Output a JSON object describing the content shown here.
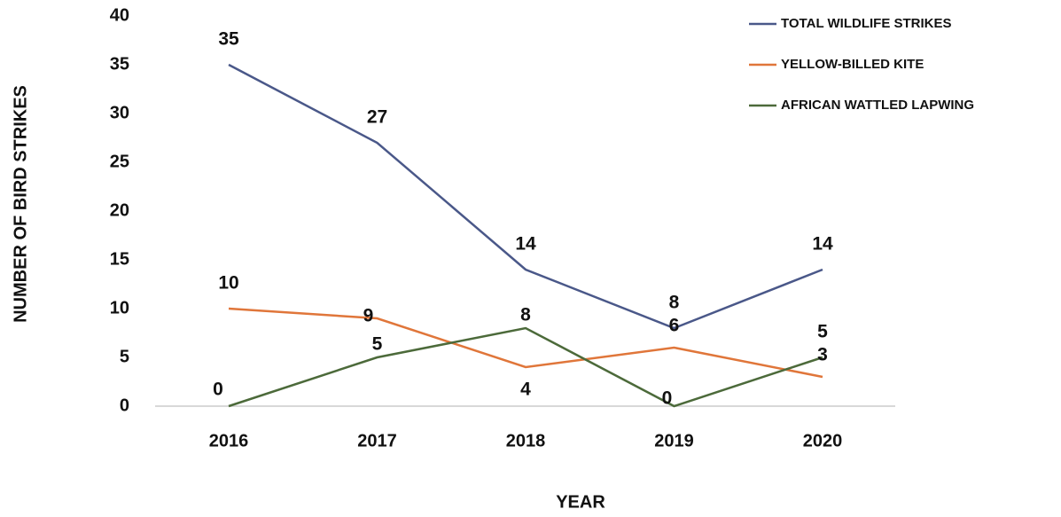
{
  "chart_data": {
    "type": "line",
    "x_label": "YEAR",
    "y_label": "NUMBER OF BIRD STRIKES",
    "categories": [
      "2016",
      "2017",
      "2018",
      "2019",
      "2020"
    ],
    "series": [
      {
        "name": "TOTAL WILDLIFE STRIKES",
        "color": "#4a5889",
        "values": [
          35,
          27,
          14,
          8,
          14
        ]
      },
      {
        "name": "YELLOW-BILLED KITE",
        "color": "#e0763a",
        "values": [
          10,
          9,
          4,
          6,
          3
        ]
      },
      {
        "name": "AFRICAN WATTLED LAPWING",
        "color": "#4c6a3a",
        "values": [
          0,
          5,
          8,
          0,
          5
        ]
      }
    ],
    "ylim": [
      0,
      40
    ],
    "yticks": [
      0,
      5,
      10,
      15,
      20,
      25,
      30,
      35,
      40
    ],
    "legend": "top-right"
  }
}
